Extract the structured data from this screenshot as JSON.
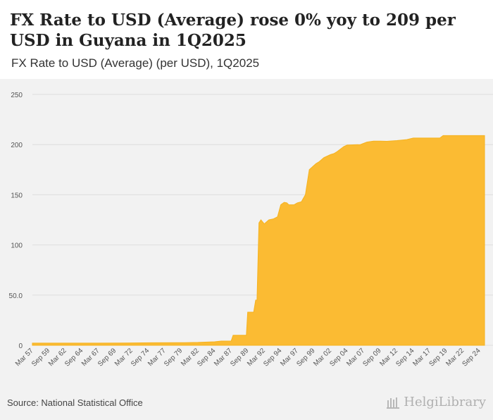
{
  "header": {
    "title": "FX Rate to USD (Average) rose 0% yoy to 209 per USD in Guyana in 1Q2025",
    "subtitle": "FX Rate to USD (Average) (per USD), 1Q2025"
  },
  "footer": {
    "source": "Source: National Statistical Office",
    "logo_text": "HelgiLibrary"
  },
  "colors": {
    "area": "#fbbb33",
    "area_edge": "#f5b21f",
    "grid": "#dddddd",
    "plot_bg": "#f2f2f2"
  },
  "chart_data": {
    "type": "area",
    "title": "FX Rate to USD (Average) (per USD), 1Q2025",
    "xlabel": "",
    "ylabel": "",
    "ylim": [
      0,
      250
    ],
    "yticks": [
      0,
      50,
      100,
      150,
      200,
      250
    ],
    "ytick_labels": [
      "0",
      "50.0",
      "100",
      "150",
      "200",
      "250"
    ],
    "grid": true,
    "xlim": [
      1957.0,
      2025.25
    ],
    "xticks": [
      {
        "label": "Mar 57",
        "t": 1957.17
      },
      {
        "label": "Sep 59",
        "t": 1959.67
      },
      {
        "label": "Mar 62",
        "t": 1962.17
      },
      {
        "label": "Sep 64",
        "t": 1964.67
      },
      {
        "label": "Mar 67",
        "t": 1967.17
      },
      {
        "label": "Sep 69",
        "t": 1969.67
      },
      {
        "label": "Mar 72",
        "t": 1972.17
      },
      {
        "label": "Sep 74",
        "t": 1974.67
      },
      {
        "label": "Mar 77",
        "t": 1977.17
      },
      {
        "label": "Sep 79",
        "t": 1979.67
      },
      {
        "label": "Mar 82",
        "t": 1982.17
      },
      {
        "label": "Sep 84",
        "t": 1984.67
      },
      {
        "label": "Mar 87",
        "t": 1987.17
      },
      {
        "label": "Sep 89",
        "t": 1989.67
      },
      {
        "label": "Mar 92",
        "t": 1992.17
      },
      {
        "label": "Sep 94",
        "t": 1994.67
      },
      {
        "label": "Mar 97",
        "t": 1997.17
      },
      {
        "label": "Sep 99",
        "t": 1999.67
      },
      {
        "label": "Mar 02",
        "t": 2002.17
      },
      {
        "label": "Sep 04",
        "t": 2004.67
      },
      {
        "label": "Mar 07",
        "t": 2007.17
      },
      {
        "label": "Sep 09",
        "t": 2009.67
      },
      {
        "label": "Mar 12",
        "t": 2012.17
      },
      {
        "label": "Sep 14",
        "t": 2014.67
      },
      {
        "label": "Mar 17",
        "t": 2017.17
      },
      {
        "label": "Sep 19",
        "t": 2019.67
      },
      {
        "label": "Mar 22",
        "t": 2022.17
      },
      {
        "label": "Sep 24",
        "t": 2024.67
      }
    ],
    "series": [
      {
        "name": "FX Rate to USD (Average)",
        "points": [
          [
            1957.0,
            2.2
          ],
          [
            1967.0,
            2.2
          ],
          [
            1971.0,
            2.3
          ],
          [
            1975.0,
            2.5
          ],
          [
            1980.0,
            2.7
          ],
          [
            1982.0,
            2.9
          ],
          [
            1984.5,
            3.5
          ],
          [
            1985.5,
            4.2
          ],
          [
            1987.0,
            4.3
          ],
          [
            1987.3,
            10.0
          ],
          [
            1989.3,
            10.0
          ],
          [
            1989.5,
            33.0
          ],
          [
            1990.4,
            33.0
          ],
          [
            1990.7,
            45.0
          ],
          [
            1990.9,
            45.0
          ],
          [
            1991.2,
            122.0
          ],
          [
            1991.5,
            125.0
          ],
          [
            1992.0,
            121.0
          ],
          [
            1992.7,
            125.0
          ],
          [
            1993.4,
            126.0
          ],
          [
            1994.0,
            128.0
          ],
          [
            1994.5,
            140.0
          ],
          [
            1995.0,
            142.5
          ],
          [
            1995.4,
            142.0
          ],
          [
            1995.7,
            140.0
          ],
          [
            1996.5,
            140.0
          ],
          [
            1997.0,
            142.0
          ],
          [
            1997.6,
            143.0
          ],
          [
            1998.2,
            150.0
          ],
          [
            1998.8,
            175.0
          ],
          [
            1999.3,
            178.0
          ],
          [
            1999.8,
            181.0
          ],
          [
            2000.3,
            183.0
          ],
          [
            2001.0,
            187.0
          ],
          [
            2002.0,
            190.0
          ],
          [
            2002.5,
            191.0
          ],
          [
            2003.0,
            193.0
          ],
          [
            2004.0,
            198.0
          ],
          [
            2004.5,
            199.5
          ],
          [
            2005.5,
            199.8
          ],
          [
            2006.5,
            200.0
          ],
          [
            2007.5,
            202.5
          ],
          [
            2008.5,
            203.5
          ],
          [
            2009.5,
            203.5
          ],
          [
            2010.5,
            203.3
          ],
          [
            2012.0,
            204.0
          ],
          [
            2013.5,
            205.0
          ],
          [
            2014.5,
            206.5
          ],
          [
            2016.0,
            206.5
          ],
          [
            2017.5,
            206.5
          ],
          [
            2018.5,
            206.5
          ],
          [
            2019.0,
            209.0
          ],
          [
            2021.0,
            209.0
          ],
          [
            2023.0,
            209.0
          ],
          [
            2025.25,
            209.0
          ]
        ]
      }
    ]
  }
}
